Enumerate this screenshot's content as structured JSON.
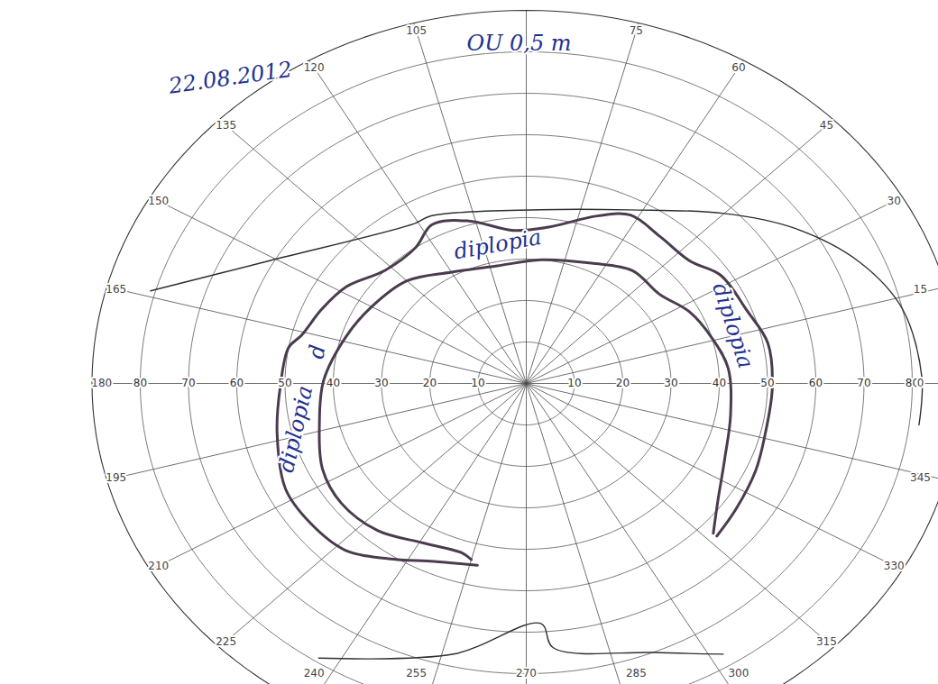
{
  "chart_data": {
    "type": "polar",
    "date": "22.08.2012",
    "note": "OU 0,5 m",
    "rlim": [
      0,
      90
    ],
    "rticks": [
      10,
      20,
      30,
      40,
      50,
      60,
      70,
      80
    ],
    "angle_ticks": [
      0,
      15,
      30,
      45,
      60,
      75,
      {
        "value": 90,
        "label": null
      },
      105,
      120,
      135,
      150,
      165,
      180,
      195,
      210,
      225,
      240,
      255,
      270,
      285,
      300,
      315,
      330,
      345
    ],
    "grid": true,
    "series": [
      {
        "color": "#4b3b4e",
        "line_style": "solid",
        "points": [
          [
            257,
            45
          ],
          [
            246,
            47
          ],
          [
            236,
            51
          ],
          [
            227,
            55
          ],
          [
            217,
            56
          ],
          [
            207,
            56
          ],
          [
            193,
            53
          ],
          [
            181,
            51
          ],
          [
            170,
            50
          ],
          [
            166,
            48
          ],
          [
            157,
            46
          ],
          [
            148,
            44
          ],
          [
            137,
            40
          ],
          [
            125,
            40
          ],
          [
            117,
            43
          ],
          [
            107,
            41
          ],
          [
            94,
            37
          ],
          [
            83,
            38
          ],
          [
            70,
            43
          ],
          [
            62,
            46
          ],
          [
            52,
            45
          ],
          [
            41,
            45
          ],
          [
            33,
            48
          ],
          [
            21,
            49
          ],
          [
            11,
            51
          ],
          [
            359,
            51
          ],
          [
            346,
            51
          ],
          [
            336,
            52
          ],
          [
            325,
            53
          ],
          [
            317,
            54
          ]
        ]
      },
      {
        "color": "#4b3b4e",
        "line_style": "solid",
        "points": [
          [
            255,
            44
          ],
          [
            252,
            43
          ],
          [
            241,
            44
          ],
          [
            229,
            47
          ],
          [
            217,
            48
          ],
          [
            206,
            47
          ],
          [
            193,
            44
          ],
          [
            179,
            42
          ],
          [
            163,
            39
          ],
          [
            150,
            37
          ],
          [
            135,
            35
          ],
          [
            120,
            31
          ],
          [
            102,
            29
          ],
          [
            84,
            30
          ],
          [
            65,
            32
          ],
          [
            51,
            35
          ],
          [
            38,
            35
          ],
          [
            27,
            38
          ],
          [
            16,
            40
          ],
          [
            5,
            42
          ],
          [
            350,
            43
          ],
          [
            336,
            45
          ],
          [
            324,
            49
          ],
          [
            317,
            53
          ]
        ]
      },
      {
        "color": "#2f2f2f",
        "line_style": "solid",
        "points": [
          [
            164,
            81
          ],
          [
            151,
            61
          ],
          [
            121,
            45
          ],
          [
            116,
            45
          ],
          [
            86,
            42
          ],
          [
            63,
            47
          ],
          [
            45,
            58
          ],
          [
            34,
            67
          ],
          [
            23,
            75
          ],
          [
            13,
            80
          ],
          [
            1,
            82
          ],
          [
            353,
            82
          ],
          null,
          [
            237,
            79
          ],
          [
            257,
            67
          ],
          [
            273,
            58
          ],
          [
            275,
            64
          ],
          [
            292,
            70
          ],
          [
            302,
            77
          ]
        ]
      }
    ],
    "annotations": [
      {
        "text": "diplopia",
        "angle": 100,
        "radius": 34
      },
      {
        "text": "diplopia",
        "angle": 18,
        "radius": 45
      },
      {
        "text": "diplopia",
        "angle": 193,
        "radius": 49
      },
      {
        "text": "d",
        "angle": 170,
        "radius": 44
      }
    ]
  }
}
